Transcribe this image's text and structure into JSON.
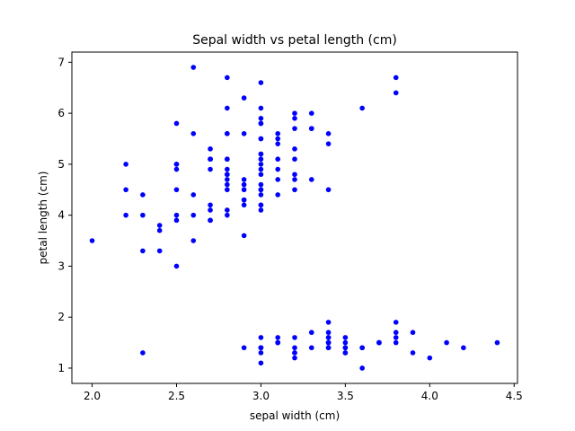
{
  "chart_data": {
    "type": "scatter",
    "title": "Sepal width vs petal length (cm)",
    "xlabel": "sepal width (cm)",
    "ylabel": "petal length (cm)",
    "xlim": [
      1.88,
      4.52
    ],
    "ylim": [
      0.7,
      7.2
    ],
    "xticks": [
      2.0,
      2.5,
      3.0,
      3.5,
      4.0,
      4.5
    ],
    "xtick_labels": [
      "2.0",
      "2.5",
      "3.0",
      "3.5",
      "4.0",
      "4.5"
    ],
    "yticks": [
      1,
      2,
      3,
      4,
      5,
      6,
      7
    ],
    "ytick_labels": [
      "1",
      "2",
      "3",
      "4",
      "5",
      "6",
      "7"
    ],
    "grid": false,
    "marker_color": "#0000ff",
    "x": [
      3.5,
      3.0,
      3.2,
      3.1,
      3.6,
      3.9,
      3.4,
      3.4,
      2.9,
      3.1,
      3.7,
      3.4,
      3.0,
      3.0,
      4.0,
      4.4,
      3.9,
      3.5,
      3.8,
      3.8,
      3.4,
      3.7,
      3.6,
      3.3,
      3.4,
      3.0,
      3.4,
      3.5,
      3.4,
      3.2,
      3.1,
      3.4,
      4.1,
      4.2,
      3.1,
      3.2,
      3.5,
      3.6,
      3.0,
      3.4,
      3.5,
      2.3,
      3.2,
      3.5,
      3.8,
      3.0,
      3.8,
      3.2,
      3.7,
      3.3,
      3.2,
      3.2,
      3.1,
      2.3,
      2.8,
      2.8,
      3.3,
      2.4,
      2.9,
      2.7,
      2.0,
      3.0,
      2.2,
      2.9,
      2.9,
      3.1,
      3.0,
      2.7,
      2.2,
      2.5,
      3.2,
      2.8,
      2.5,
      2.8,
      2.9,
      3.0,
      2.8,
      3.0,
      2.9,
      2.6,
      2.4,
      2.4,
      2.7,
      2.7,
      3.0,
      3.4,
      3.1,
      2.3,
      3.0,
      2.5,
      2.6,
      3.0,
      2.6,
      2.3,
      2.7,
      3.0,
      2.9,
      2.9,
      2.5,
      2.8,
      3.3,
      2.7,
      3.0,
      2.9,
      3.0,
      3.0,
      2.5,
      2.9,
      2.5,
      3.6,
      3.2,
      2.7,
      3.0,
      2.5,
      2.8,
      3.2,
      3.0,
      3.8,
      2.6,
      2.2,
      3.2,
      2.8,
      2.8,
      2.7,
      3.3,
      3.2,
      2.8,
      3.0,
      2.8,
      3.0,
      2.8,
      3.8,
      2.8,
      2.8,
      2.6,
      3.0,
      3.4,
      3.1,
      3.0,
      3.1,
      3.1,
      3.1,
      2.7,
      3.2,
      3.3,
      3.0,
      2.5,
      3.0,
      3.4,
      3.0
    ],
    "y": [
      1.4,
      1.4,
      1.3,
      1.5,
      1.4,
      1.7,
      1.4,
      1.5,
      1.4,
      1.5,
      1.5,
      1.6,
      1.4,
      1.1,
      1.2,
      1.5,
      1.3,
      1.4,
      1.7,
      1.5,
      1.7,
      1.5,
      1.0,
      1.7,
      1.9,
      1.6,
      1.6,
      1.5,
      1.4,
      1.6,
      1.6,
      1.5,
      1.5,
      1.4,
      1.5,
      1.2,
      1.3,
      1.4,
      1.3,
      1.5,
      1.3,
      1.3,
      1.3,
      1.6,
      1.9,
      1.4,
      1.6,
      1.4,
      1.5,
      1.4,
      4.7,
      4.5,
      4.9,
      4.0,
      4.6,
      4.5,
      4.7,
      3.3,
      4.6,
      3.9,
      3.5,
      4.2,
      4.0,
      4.7,
      3.6,
      4.4,
      4.5,
      4.1,
      4.5,
      3.9,
      4.8,
      4.0,
      4.9,
      4.7,
      4.3,
      4.4,
      4.8,
      5.0,
      4.5,
      3.5,
      3.8,
      3.7,
      3.9,
      5.1,
      4.5,
      4.5,
      4.7,
      4.4,
      4.1,
      4.0,
      4.4,
      4.6,
      4.0,
      3.3,
      4.2,
      4.2,
      4.2,
      4.3,
      3.0,
      4.1,
      6.0,
      5.1,
      5.9,
      5.6,
      5.8,
      6.6,
      4.5,
      6.3,
      5.8,
      6.1,
      5.1,
      5.3,
      5.5,
      5.0,
      5.1,
      5.3,
      5.5,
      6.7,
      6.9,
      5.0,
      5.7,
      4.9,
      6.7,
      4.9,
      5.7,
      6.0,
      4.8,
      4.9,
      5.6,
      5.8,
      6.1,
      6.4,
      5.6,
      5.1,
      5.6,
      6.1,
      5.6,
      5.5,
      4.8,
      5.4,
      5.6,
      5.1,
      5.1,
      5.9,
      5.7,
      5.2,
      5.0,
      5.2,
      5.4,
      5.1
    ]
  }
}
